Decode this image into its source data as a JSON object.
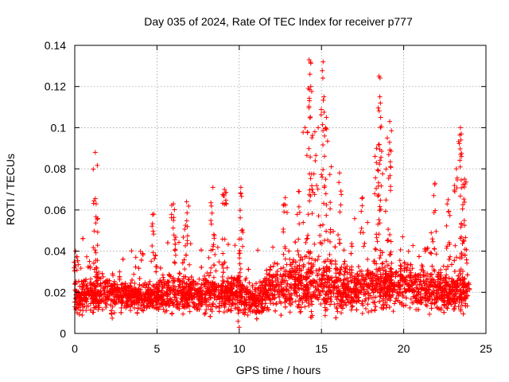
{
  "chart_data": {
    "type": "scatter",
    "title": "Day 035 of 2024, Rate Of TEC Index for receiver p777",
    "xlabel": "GPS time / hours",
    "ylabel": "ROTI / TECUs",
    "xlim": [
      0,
      25
    ],
    "ylim": [
      0,
      0.14
    ],
    "x_ticks": [
      0,
      5,
      10,
      15,
      20,
      25
    ],
    "x_tick_labels": [
      "0",
      "5",
      "10",
      "15",
      "20",
      "25"
    ],
    "y_ticks": [
      0,
      0.02,
      0.04,
      0.06,
      0.08,
      0.1,
      0.12,
      0.14
    ],
    "y_tick_labels": [
      "0",
      "0.02",
      "0.04",
      "0.06",
      "0.08",
      "0.1",
      "0.12",
      "0.14"
    ],
    "grid": true,
    "marker": "+",
    "marker_color": "#ff0000",
    "series": [
      {
        "name": "ROTI",
        "description_of_bulk": "Dense band of points spanning 0 to 24 h, mostly between 0.008 and 0.035 TECU, with spikes",
        "baseline_trend_hours": [
          0,
          2,
          4,
          6,
          8,
          10,
          11,
          12,
          14,
          16,
          18,
          20,
          22,
          24
        ],
        "baseline_trend_values": [
          0.018,
          0.019,
          0.018,
          0.019,
          0.02,
          0.02,
          0.016,
          0.022,
          0.024,
          0.022,
          0.022,
          0.024,
          0.021,
          0.019
        ],
        "spread_trend_values": [
          0.006,
          0.006,
          0.005,
          0.006,
          0.006,
          0.006,
          0.005,
          0.007,
          0.009,
          0.008,
          0.008,
          0.008,
          0.007,
          0.006
        ],
        "peaks": [
          {
            "x": 1.25,
            "y": 0.088
          },
          {
            "x": 0.05,
            "y": 0.04
          },
          {
            "x": 1.3,
            "y": 0.063
          },
          {
            "x": 4.8,
            "y": 0.058
          },
          {
            "x": 6.0,
            "y": 0.063
          },
          {
            "x": 6.8,
            "y": 0.064
          },
          {
            "x": 8.4,
            "y": 0.071
          },
          {
            "x": 9.1,
            "y": 0.07
          },
          {
            "x": 10.1,
            "y": 0.071
          },
          {
            "x": 12.8,
            "y": 0.066
          },
          {
            "x": 13.6,
            "y": 0.069
          },
          {
            "x": 14.0,
            "y": 0.1
          },
          {
            "x": 14.25,
            "y": 0.133
          },
          {
            "x": 14.3,
            "y": 0.126
          },
          {
            "x": 14.35,
            "y": 0.12
          },
          {
            "x": 14.6,
            "y": 0.098
          },
          {
            "x": 14.8,
            "y": 0.1
          },
          {
            "x": 15.1,
            "y": 0.132
          },
          {
            "x": 15.15,
            "y": 0.115
          },
          {
            "x": 15.3,
            "y": 0.105
          },
          {
            "x": 15.6,
            "y": 0.081
          },
          {
            "x": 16.1,
            "y": 0.078
          },
          {
            "x": 17.5,
            "y": 0.066
          },
          {
            "x": 18.35,
            "y": 0.09
          },
          {
            "x": 18.5,
            "y": 0.125
          },
          {
            "x": 18.55,
            "y": 0.115
          },
          {
            "x": 18.6,
            "y": 0.105
          },
          {
            "x": 19.0,
            "y": 0.095
          },
          {
            "x": 19.15,
            "y": 0.103
          },
          {
            "x": 19.2,
            "y": 0.081
          },
          {
            "x": 21.9,
            "y": 0.073
          },
          {
            "x": 22.7,
            "y": 0.065
          },
          {
            "x": 23.2,
            "y": 0.08
          },
          {
            "x": 23.45,
            "y": 0.1
          },
          {
            "x": 23.5,
            "y": 0.097
          },
          {
            "x": 23.7,
            "y": 0.075
          },
          {
            "x": 10.0,
            "y": 0.003
          }
        ]
      }
    ]
  }
}
